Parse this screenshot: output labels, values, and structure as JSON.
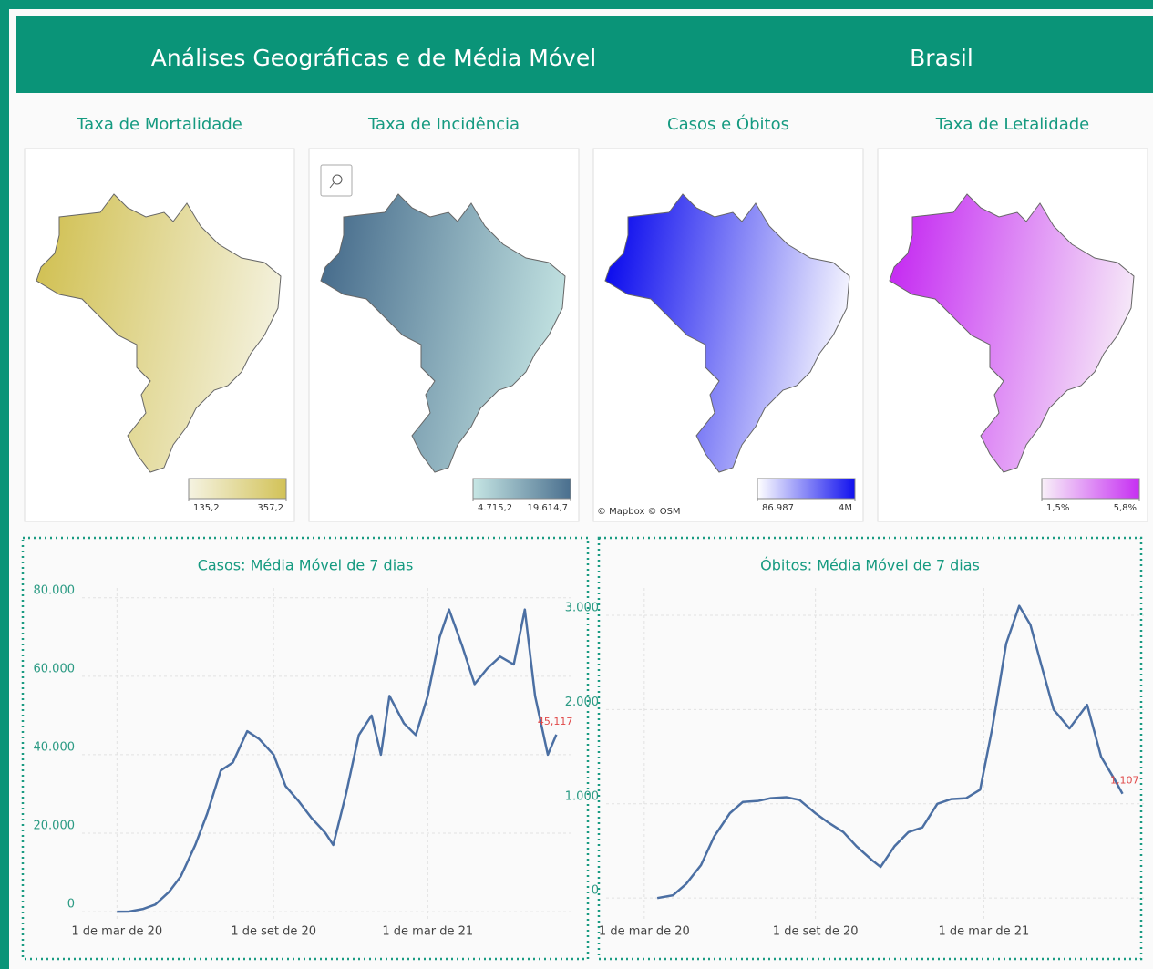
{
  "header": {
    "title": "Análises Geográficas e de Média Móvel",
    "region": "Brasil"
  },
  "chart_data": [
    {
      "type": "choropleth",
      "title": "Taxa de Mortalidade",
      "scale_colors": [
        "#f5f3e2",
        "#d2c257"
      ],
      "colorbar_ticks": [
        {
          "value": 135.2,
          "label": "135,2"
        },
        {
          "value": 357.2,
          "label": "357,2"
        }
      ]
    },
    {
      "type": "choropleth",
      "title": "Taxa de Incidência",
      "scale_colors": [
        "#c6e6e4",
        "#4a6f8e"
      ],
      "colorbar_ticks": [
        {
          "value": 4715.2,
          "label": "4.715,2"
        },
        {
          "value": 19614.7,
          "label": "19.614,7"
        }
      ]
    },
    {
      "type": "choropleth",
      "title": "Casos e Óbitos",
      "scale_colors": [
        "#ffffff",
        "#1010ee"
      ],
      "attribution": "© Mapbox  © OSM",
      "colorbar_ticks": [
        {
          "value": 86987,
          "label": "86.987"
        },
        {
          "value": 4000000,
          "label": "4M"
        }
      ]
    },
    {
      "type": "choropleth",
      "title": "Taxa de Letalidade",
      "scale_colors": [
        "#f8f0f8",
        "#c62ff2"
      ],
      "colorbar_ticks": [
        {
          "value": 1.5,
          "label": "1,5%"
        },
        {
          "value": 5.8,
          "label": "5,8%"
        }
      ]
    },
    {
      "type": "line",
      "title": "Casos: Média Móvel de 7 dias",
      "color": "#4b6fa3",
      "last_label": "45,117",
      "grid": true,
      "x": [
        "2020-03-01",
        "2020-03-15",
        "2020-04-01",
        "2020-04-15",
        "2020-05-01",
        "2020-05-15",
        "2020-06-01",
        "2020-06-15",
        "2020-07-01",
        "2020-07-15",
        "2020-08-01",
        "2020-08-15",
        "2020-09-01",
        "2020-09-15",
        "2020-10-01",
        "2020-10-15",
        "2020-11-01",
        "2020-11-10",
        "2020-11-25",
        "2020-12-10",
        "2020-12-25",
        "2021-01-05",
        "2021-01-15",
        "2021-02-01",
        "2021-02-15",
        "2021-03-01",
        "2021-03-15",
        "2021-03-26",
        "2021-04-10",
        "2021-04-25",
        "2021-05-10",
        "2021-05-25",
        "2021-06-10",
        "2021-06-23",
        "2021-07-05",
        "2021-07-20",
        "2021-07-30"
      ],
      "values": [
        0,
        30,
        700,
        1800,
        5000,
        9000,
        17000,
        25000,
        36000,
        38000,
        46000,
        44000,
        40000,
        32000,
        28000,
        24000,
        20000,
        17000,
        30000,
        45000,
        50000,
        40000,
        55000,
        48000,
        45000,
        55000,
        70000,
        77000,
        68000,
        58000,
        62000,
        65000,
        63000,
        77000,
        55000,
        40000,
        45117
      ],
      "xlim": [
        "2020-01-20",
        "2021-08-20"
      ],
      "xticks": [
        {
          "value": "2020-03-01",
          "label": "1 de mar de 20"
        },
        {
          "value": "2020-09-01",
          "label": "1 de set de 20"
        },
        {
          "value": "2021-03-01",
          "label": "1 de mar de 21"
        }
      ],
      "ylim": [
        -2300,
        82500
      ],
      "yticks": [
        0,
        {
          "value": 20000,
          "label": "20.000"
        },
        {
          "value": 40000,
          "label": "40.000"
        },
        {
          "value": 60000,
          "label": "60.000"
        },
        {
          "value": 80000,
          "label": "80.000"
        }
      ]
    },
    {
      "type": "line",
      "title": "Óbitos: Média Móvel de 7 dias",
      "color": "#4b6fa3",
      "last_label": "1,107",
      "grid": true,
      "x": [
        "2020-03-15",
        "2020-04-01",
        "2020-04-15",
        "2020-05-01",
        "2020-05-15",
        "2020-06-01",
        "2020-06-15",
        "2020-07-01",
        "2020-07-15",
        "2020-08-01",
        "2020-08-15",
        "2020-09-01",
        "2020-09-15",
        "2020-10-01",
        "2020-10-15",
        "2020-11-01",
        "2020-11-10",
        "2020-11-25",
        "2020-12-10",
        "2020-12-25",
        "2021-01-10",
        "2021-01-25",
        "2021-02-10",
        "2021-02-25",
        "2021-03-10",
        "2021-03-25",
        "2021-04-08",
        "2021-04-20",
        "2021-05-01",
        "2021-05-15",
        "2021-06-01",
        "2021-06-20",
        "2021-07-05",
        "2021-07-20",
        "2021-07-28"
      ],
      "values": [
        0,
        30,
        150,
        350,
        650,
        900,
        1020,
        1030,
        1060,
        1070,
        1040,
        900,
        800,
        700,
        550,
        400,
        330,
        550,
        700,
        750,
        1000,
        1050,
        1060,
        1150,
        1800,
        2700,
        3100,
        2900,
        2500,
        2000,
        1800,
        2050,
        1500,
        1250,
        1107
      ],
      "xlim": [
        "2020-01-20",
        "2021-08-20"
      ],
      "xticks": [
        {
          "value": "2020-03-01",
          "label": "1 de mar de 20"
        },
        {
          "value": "2020-09-01",
          "label": "1 de set de 20"
        },
        {
          "value": "2021-03-01",
          "label": "1 de mar de 21"
        }
      ],
      "ylim": [
        -240,
        3290
      ],
      "yticks": [
        0,
        {
          "value": 1000,
          "label": "1.000"
        },
        {
          "value": 2000,
          "label": "2.000"
        },
        {
          "value": 3000,
          "label": "3.000"
        }
      ]
    }
  ]
}
